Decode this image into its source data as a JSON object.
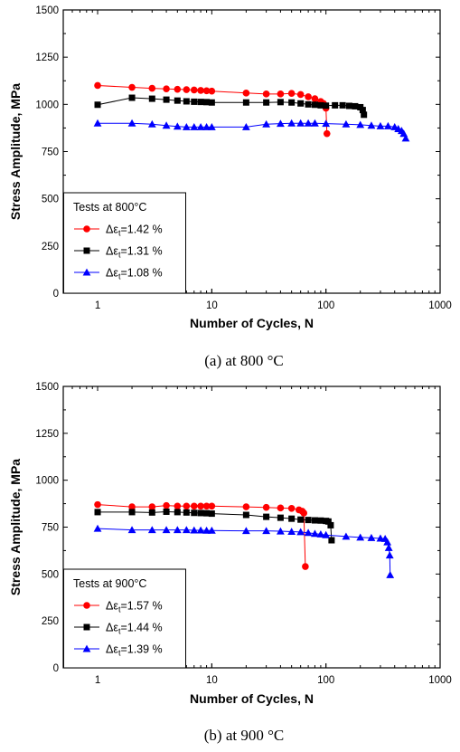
{
  "chart_data": [
    {
      "type": "scatter",
      "caption": "(a) at 800 °C",
      "xlabel": "Number of Cycles, N",
      "ylabel": "Stress Amplitude, MPa",
      "xscale": "log",
      "xlim": [
        0.5,
        1000
      ],
      "ylim": [
        0,
        1500
      ],
      "xticks": [
        "1",
        "10",
        "100",
        "1000"
      ],
      "yticks": [
        "0",
        "250",
        "500",
        "750",
        "1000",
        "1250",
        "1500"
      ],
      "grid": false,
      "legend": {
        "title": "Tests at 800°C",
        "placement": "lower-left"
      },
      "series": [
        {
          "name": "Δεt=1.42 %",
          "label_prefix": "Δε",
          "label_sub": "t",
          "label_suffix": "=1.42 %",
          "marker": "circle",
          "color": "#ff0000",
          "points": [
            [
              1,
              1100
            ],
            [
              2,
              1090
            ],
            [
              3,
              1085
            ],
            [
              4,
              1082
            ],
            [
              5,
              1080
            ],
            [
              6,
              1078
            ],
            [
              7,
              1076
            ],
            [
              8,
              1074
            ],
            [
              9,
              1072
            ],
            [
              10,
              1070
            ],
            [
              20,
              1060
            ],
            [
              30,
              1055
            ],
            [
              40,
              1055
            ],
            [
              50,
              1058
            ],
            [
              60,
              1052
            ],
            [
              70,
              1040
            ],
            [
              80,
              1030
            ],
            [
              90,
              1015
            ],
            [
              95,
              1005
            ],
            [
              100,
              980
            ],
            [
              102,
              845
            ]
          ]
        },
        {
          "name": "Δεt=1.31 %",
          "label_prefix": "Δε",
          "label_sub": "t",
          "label_suffix": "=1.31 %",
          "marker": "square",
          "color": "#000000",
          "points": [
            [
              1,
              998
            ],
            [
              2,
              1035
            ],
            [
              3,
              1030
            ],
            [
              4,
              1025
            ],
            [
              5,
              1020
            ],
            [
              6,
              1016
            ],
            [
              7,
              1014
            ],
            [
              8,
              1013
            ],
            [
              9,
              1012
            ],
            [
              10,
              1010
            ],
            [
              20,
              1010
            ],
            [
              30,
              1010
            ],
            [
              40,
              1012
            ],
            [
              50,
              1010
            ],
            [
              60,
              1005
            ],
            [
              70,
              1000
            ],
            [
              80,
              998
            ],
            [
              90,
              995
            ],
            [
              100,
              993
            ],
            [
              120,
              995
            ],
            [
              140,
              995
            ],
            [
              160,
              992
            ],
            [
              180,
              990
            ],
            [
              200,
              985
            ],
            [
              210,
              970
            ],
            [
              215,
              945
            ]
          ]
        },
        {
          "name": "Δεt=1.08 %",
          "label_prefix": "Δε",
          "label_sub": "t",
          "label_suffix": "=1.08 %",
          "marker": "triangle",
          "color": "#0000ff",
          "points": [
            [
              1,
              900
            ],
            [
              2,
              900
            ],
            [
              3,
              895
            ],
            [
              4,
              888
            ],
            [
              5,
              883
            ],
            [
              6,
              880
            ],
            [
              7,
              880
            ],
            [
              8,
              880
            ],
            [
              9,
              880
            ],
            [
              10,
              880
            ],
            [
              20,
              880
            ],
            [
              30,
              895
            ],
            [
              40,
              898
            ],
            [
              50,
              900
            ],
            [
              60,
              900
            ],
            [
              70,
              900
            ],
            [
              80,
              900
            ],
            [
              100,
              898
            ],
            [
              150,
              895
            ],
            [
              200,
              892
            ],
            [
              250,
              888
            ],
            [
              300,
              885
            ],
            [
              350,
              885
            ],
            [
              400,
              880
            ],
            [
              430,
              870
            ],
            [
              460,
              860
            ],
            [
              480,
              845
            ],
            [
              500,
              820
            ]
          ]
        }
      ]
    },
    {
      "type": "scatter",
      "caption": "(b) at 900 °C",
      "xlabel": "Number of Cycles, N",
      "ylabel": "Stress Amplitude, MPa",
      "xscale": "log",
      "xlim": [
        0.5,
        1000
      ],
      "ylim": [
        0,
        1500
      ],
      "xticks": [
        "1",
        "10",
        "100",
        "1000"
      ],
      "yticks": [
        "0",
        "250",
        "500",
        "750",
        "1000",
        "1250",
        "1500"
      ],
      "grid": false,
      "legend": {
        "title": "Tests at 900°C",
        "placement": "lower-left"
      },
      "series": [
        {
          "name": "Δεt=1.57 %",
          "label_prefix": "Δε",
          "label_sub": "t",
          "label_suffix": "=1.57 %",
          "marker": "circle",
          "color": "#ff0000",
          "points": [
            [
              1,
              870
            ],
            [
              2,
              858
            ],
            [
              3,
              858
            ],
            [
              4,
              865
            ],
            [
              5,
              862
            ],
            [
              6,
              862
            ],
            [
              7,
              862
            ],
            [
              8,
              862
            ],
            [
              9,
              862
            ],
            [
              10,
              862
            ],
            [
              20,
              858
            ],
            [
              30,
              855
            ],
            [
              40,
              852
            ],
            [
              50,
              850
            ],
            [
              58,
              842
            ],
            [
              62,
              835
            ],
            [
              64,
              825
            ],
            [
              66,
              540
            ]
          ]
        },
        {
          "name": "Δεt=1.44 %",
          "label_prefix": "Δε",
          "label_sub": "t",
          "label_suffix": "=1.44 %",
          "marker": "square",
          "color": "#000000",
          "points": [
            [
              1,
              830
            ],
            [
              2,
              830
            ],
            [
              3,
              828
            ],
            [
              4,
              832
            ],
            [
              5,
              830
            ],
            [
              6,
              828
            ],
            [
              7,
              826
            ],
            [
              8,
              825
            ],
            [
              9,
              824
            ],
            [
              10,
              822
            ],
            [
              20,
              815
            ],
            [
              30,
              805
            ],
            [
              40,
              800
            ],
            [
              50,
              795
            ],
            [
              60,
              790
            ],
            [
              70,
              788
            ],
            [
              80,
              786
            ],
            [
              90,
              785
            ],
            [
              100,
              783
            ],
            [
              105,
              780
            ],
            [
              110,
              760
            ],
            [
              112,
              680
            ]
          ]
        },
        {
          "name": "Δεt=1.39 %",
          "label_prefix": "Δε",
          "label_sub": "t",
          "label_suffix": "=1.39 %",
          "marker": "triangle",
          "color": "#0000ff",
          "points": [
            [
              1,
              742
            ],
            [
              2,
              735
            ],
            [
              3,
              735
            ],
            [
              4,
              735
            ],
            [
              5,
              735
            ],
            [
              6,
              735
            ],
            [
              7,
              733
            ],
            [
              8,
              733
            ],
            [
              9,
              732
            ],
            [
              10,
              732
            ],
            [
              20,
              730
            ],
            [
              30,
              730
            ],
            [
              40,
              728
            ],
            [
              50,
              726
            ],
            [
              60,
              724
            ],
            [
              70,
              720
            ],
            [
              80,
              715
            ],
            [
              90,
              712
            ],
            [
              100,
              708
            ],
            [
              150,
              700
            ],
            [
              200,
              695
            ],
            [
              250,
              693
            ],
            [
              300,
              690
            ],
            [
              330,
              688
            ],
            [
              345,
              670
            ],
            [
              355,
              640
            ],
            [
              362,
              600
            ],
            [
              365,
              495
            ]
          ]
        }
      ]
    }
  ]
}
